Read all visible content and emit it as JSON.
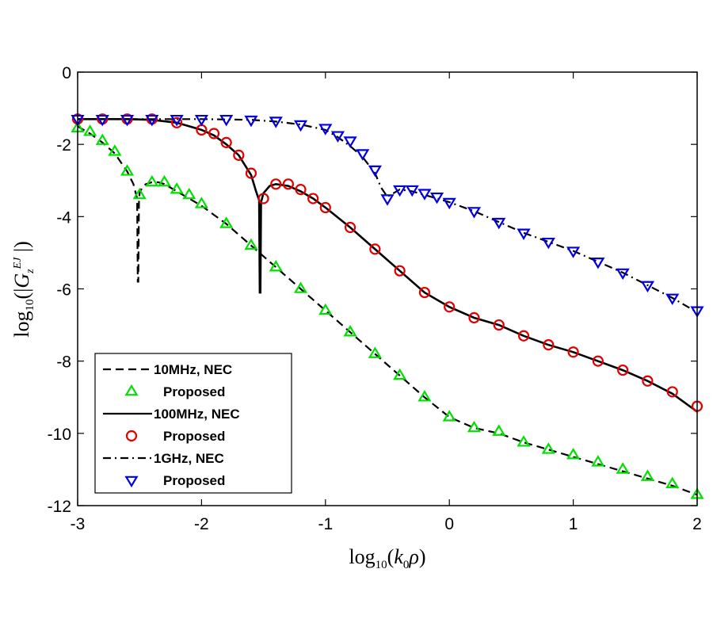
{
  "chart_data": {
    "type": "line",
    "title": "",
    "xlabel": "log10(k0ρ)",
    "ylabel": "log10(|G_z^EJ|)",
    "xlim": [
      -3,
      2
    ],
    "ylim": [
      -12,
      0
    ],
    "xticks": [
      -3,
      -2,
      -1,
      0,
      1,
      2
    ],
    "yticks": [
      0,
      -2,
      -4,
      -6,
      -8,
      -10,
      -12
    ],
    "xtick_labels": [
      "-3",
      "-2",
      "-1",
      "0",
      "1",
      "2"
    ],
    "ytick_labels": [
      "0",
      "-2",
      "-4",
      "-6",
      "-8",
      "-10",
      "-12"
    ],
    "grid": false,
    "legend_position": "bottom-left",
    "series": [
      {
        "name": "10MHz, NEC",
        "style": "dashed",
        "color": "#000000",
        "x": [
          -3.0,
          -2.9,
          -2.8,
          -2.7,
          -2.6,
          -2.55,
          -2.52,
          -2.515,
          -2.51,
          -2.505,
          -2.5,
          -2.48,
          -2.45,
          -2.4,
          -2.35,
          -2.3,
          -2.2,
          -2.1,
          -2.0,
          -1.8,
          -1.6,
          -1.4,
          -1.2,
          -1.0,
          -0.8,
          -0.6,
          -0.4,
          -0.2,
          0.0,
          0.2,
          0.4,
          0.6,
          0.8,
          1.0,
          1.2,
          1.4,
          1.6,
          1.8,
          2.0
        ],
        "y": [
          -1.5,
          -1.7,
          -1.95,
          -2.25,
          -2.75,
          -3.1,
          -3.5,
          -5.8,
          -5.8,
          -3.6,
          -3.35,
          -3.2,
          -3.1,
          -3.05,
          -3.05,
          -3.1,
          -3.3,
          -3.5,
          -3.7,
          -4.2,
          -4.8,
          -5.4,
          -6.0,
          -6.6,
          -7.2,
          -7.8,
          -8.4,
          -9.0,
          -9.55,
          -9.85,
          -10.0,
          -10.25,
          -10.45,
          -10.65,
          -10.85,
          -11.05,
          -11.25,
          -11.45,
          -11.7
        ]
      },
      {
        "name": "Proposed",
        "marker": "triangle-up",
        "color": "#00e000",
        "x": [
          -3.0,
          -2.9,
          -2.8,
          -2.7,
          -2.6,
          -2.5,
          -2.4,
          -2.3,
          -2.2,
          -2.1,
          -2.0,
          -1.8,
          -1.6,
          -1.4,
          -1.2,
          -1.0,
          -0.8,
          -0.6,
          -0.4,
          -0.2,
          0.0,
          0.2,
          0.4,
          0.6,
          0.8,
          1.0,
          1.2,
          1.4,
          1.6,
          1.8,
          2.0
        ],
        "y": [
          -1.55,
          -1.65,
          -1.9,
          -2.2,
          -2.75,
          -3.4,
          -3.05,
          -3.05,
          -3.25,
          -3.4,
          -3.65,
          -4.2,
          -4.8,
          -5.4,
          -6.0,
          -6.6,
          -7.2,
          -7.8,
          -8.4,
          -9.0,
          -9.55,
          -9.85,
          -9.95,
          -10.25,
          -10.45,
          -10.6,
          -10.8,
          -11.0,
          -11.2,
          -11.4,
          -11.7
        ]
      },
      {
        "name": "100MHz, NEC",
        "style": "solid",
        "color": "#000000",
        "x": [
          -3.0,
          -2.6,
          -2.4,
          -2.2,
          -2.0,
          -1.9,
          -1.8,
          -1.7,
          -1.6,
          -1.56,
          -1.535,
          -1.53,
          -1.525,
          -1.52,
          -1.5,
          -1.45,
          -1.4,
          -1.3,
          -1.2,
          -1.1,
          -1.0,
          -0.8,
          -0.6,
          -0.4,
          -0.2,
          0.0,
          0.2,
          0.4,
          0.6,
          0.8,
          1.0,
          1.2,
          1.4,
          1.6,
          1.8,
          2.0
        ],
        "y": [
          -1.3,
          -1.3,
          -1.32,
          -1.4,
          -1.6,
          -1.75,
          -2.0,
          -2.3,
          -2.85,
          -3.3,
          -3.55,
          -6.1,
          -6.1,
          -3.6,
          -3.35,
          -3.15,
          -3.1,
          -3.15,
          -3.3,
          -3.5,
          -3.75,
          -4.3,
          -4.9,
          -5.5,
          -6.1,
          -6.5,
          -6.8,
          -7.0,
          -7.3,
          -7.55,
          -7.75,
          -8.0,
          -8.25,
          -8.55,
          -8.9,
          -9.4
        ]
      },
      {
        "name": "Proposed",
        "marker": "circle",
        "color": "#e00000",
        "x": [
          -3.0,
          -2.8,
          -2.6,
          -2.4,
          -2.2,
          -2.0,
          -1.9,
          -1.8,
          -1.7,
          -1.6,
          -1.5,
          -1.4,
          -1.3,
          -1.2,
          -1.1,
          -1.0,
          -0.8,
          -0.6,
          -0.4,
          -0.2,
          0.0,
          0.2,
          0.4,
          0.6,
          0.8,
          1.0,
          1.2,
          1.4,
          1.6,
          1.8,
          2.0
        ],
        "y": [
          -1.3,
          -1.3,
          -1.3,
          -1.3,
          -1.4,
          -1.6,
          -1.7,
          -1.95,
          -2.3,
          -2.8,
          -3.5,
          -3.1,
          -3.1,
          -3.25,
          -3.5,
          -3.75,
          -4.3,
          -4.9,
          -5.5,
          -6.1,
          -6.5,
          -6.8,
          -7.0,
          -7.3,
          -7.55,
          -7.75,
          -8.0,
          -8.25,
          -8.55,
          -8.85,
          -9.25
        ]
      },
      {
        "name": "1GHz, NEC",
        "style": "dashdot",
        "color": "#000000",
        "x": [
          -3.0,
          -2.5,
          -2.0,
          -1.6,
          -1.4,
          -1.2,
          -1.0,
          -0.9,
          -0.8,
          -0.7,
          -0.6,
          -0.55,
          -0.5,
          -0.45,
          -0.4,
          -0.3,
          -0.2,
          -0.1,
          0.0,
          0.2,
          0.4,
          0.6,
          0.8,
          1.0,
          1.2,
          1.4,
          1.6,
          1.8,
          2.0
        ],
        "y": [
          -1.3,
          -1.3,
          -1.3,
          -1.32,
          -1.37,
          -1.45,
          -1.6,
          -1.8,
          -2.05,
          -2.35,
          -2.8,
          -3.2,
          -3.45,
          -3.35,
          -3.25,
          -3.3,
          -3.4,
          -3.5,
          -3.6,
          -3.85,
          -4.15,
          -4.45,
          -4.7,
          -4.95,
          -5.25,
          -5.55,
          -5.9,
          -6.25,
          -6.65
        ]
      },
      {
        "name": "Proposed",
        "marker": "triangle-down",
        "color": "#0000e0",
        "x": [
          -3.0,
          -2.8,
          -2.6,
          -2.4,
          -2.2,
          -2.0,
          -1.8,
          -1.6,
          -1.4,
          -1.2,
          -1.0,
          -0.9,
          -0.8,
          -0.7,
          -0.6,
          -0.5,
          -0.4,
          -0.3,
          -0.2,
          -0.1,
          0.0,
          0.2,
          0.4,
          0.6,
          0.8,
          1.0,
          1.2,
          1.4,
          1.6,
          1.8,
          2.0
        ],
        "y": [
          -1.3,
          -1.3,
          -1.3,
          -1.3,
          -1.3,
          -1.3,
          -1.3,
          -1.32,
          -1.35,
          -1.45,
          -1.55,
          -1.75,
          -1.9,
          -2.25,
          -2.7,
          -3.5,
          -3.25,
          -3.25,
          -3.35,
          -3.45,
          -3.6,
          -3.85,
          -4.15,
          -4.45,
          -4.7,
          -4.95,
          -5.25,
          -5.55,
          -5.9,
          -6.25,
          -6.6
        ]
      }
    ],
    "legend": [
      {
        "label": "10MHz, NEC",
        "kind": "line",
        "style": "dashed"
      },
      {
        "label": "Proposed",
        "kind": "marker",
        "marker": "triangle-up",
        "color": "#00e000"
      },
      {
        "label": "100MHz, NEC",
        "kind": "line",
        "style": "solid"
      },
      {
        "label": "Proposed",
        "kind": "marker",
        "marker": "circle",
        "color": "#e00000"
      },
      {
        "label": "1GHz, NEC",
        "kind": "line",
        "style": "dashdot"
      },
      {
        "label": "Proposed",
        "kind": "marker",
        "marker": "triangle-down",
        "color": "#0000e0"
      }
    ]
  }
}
